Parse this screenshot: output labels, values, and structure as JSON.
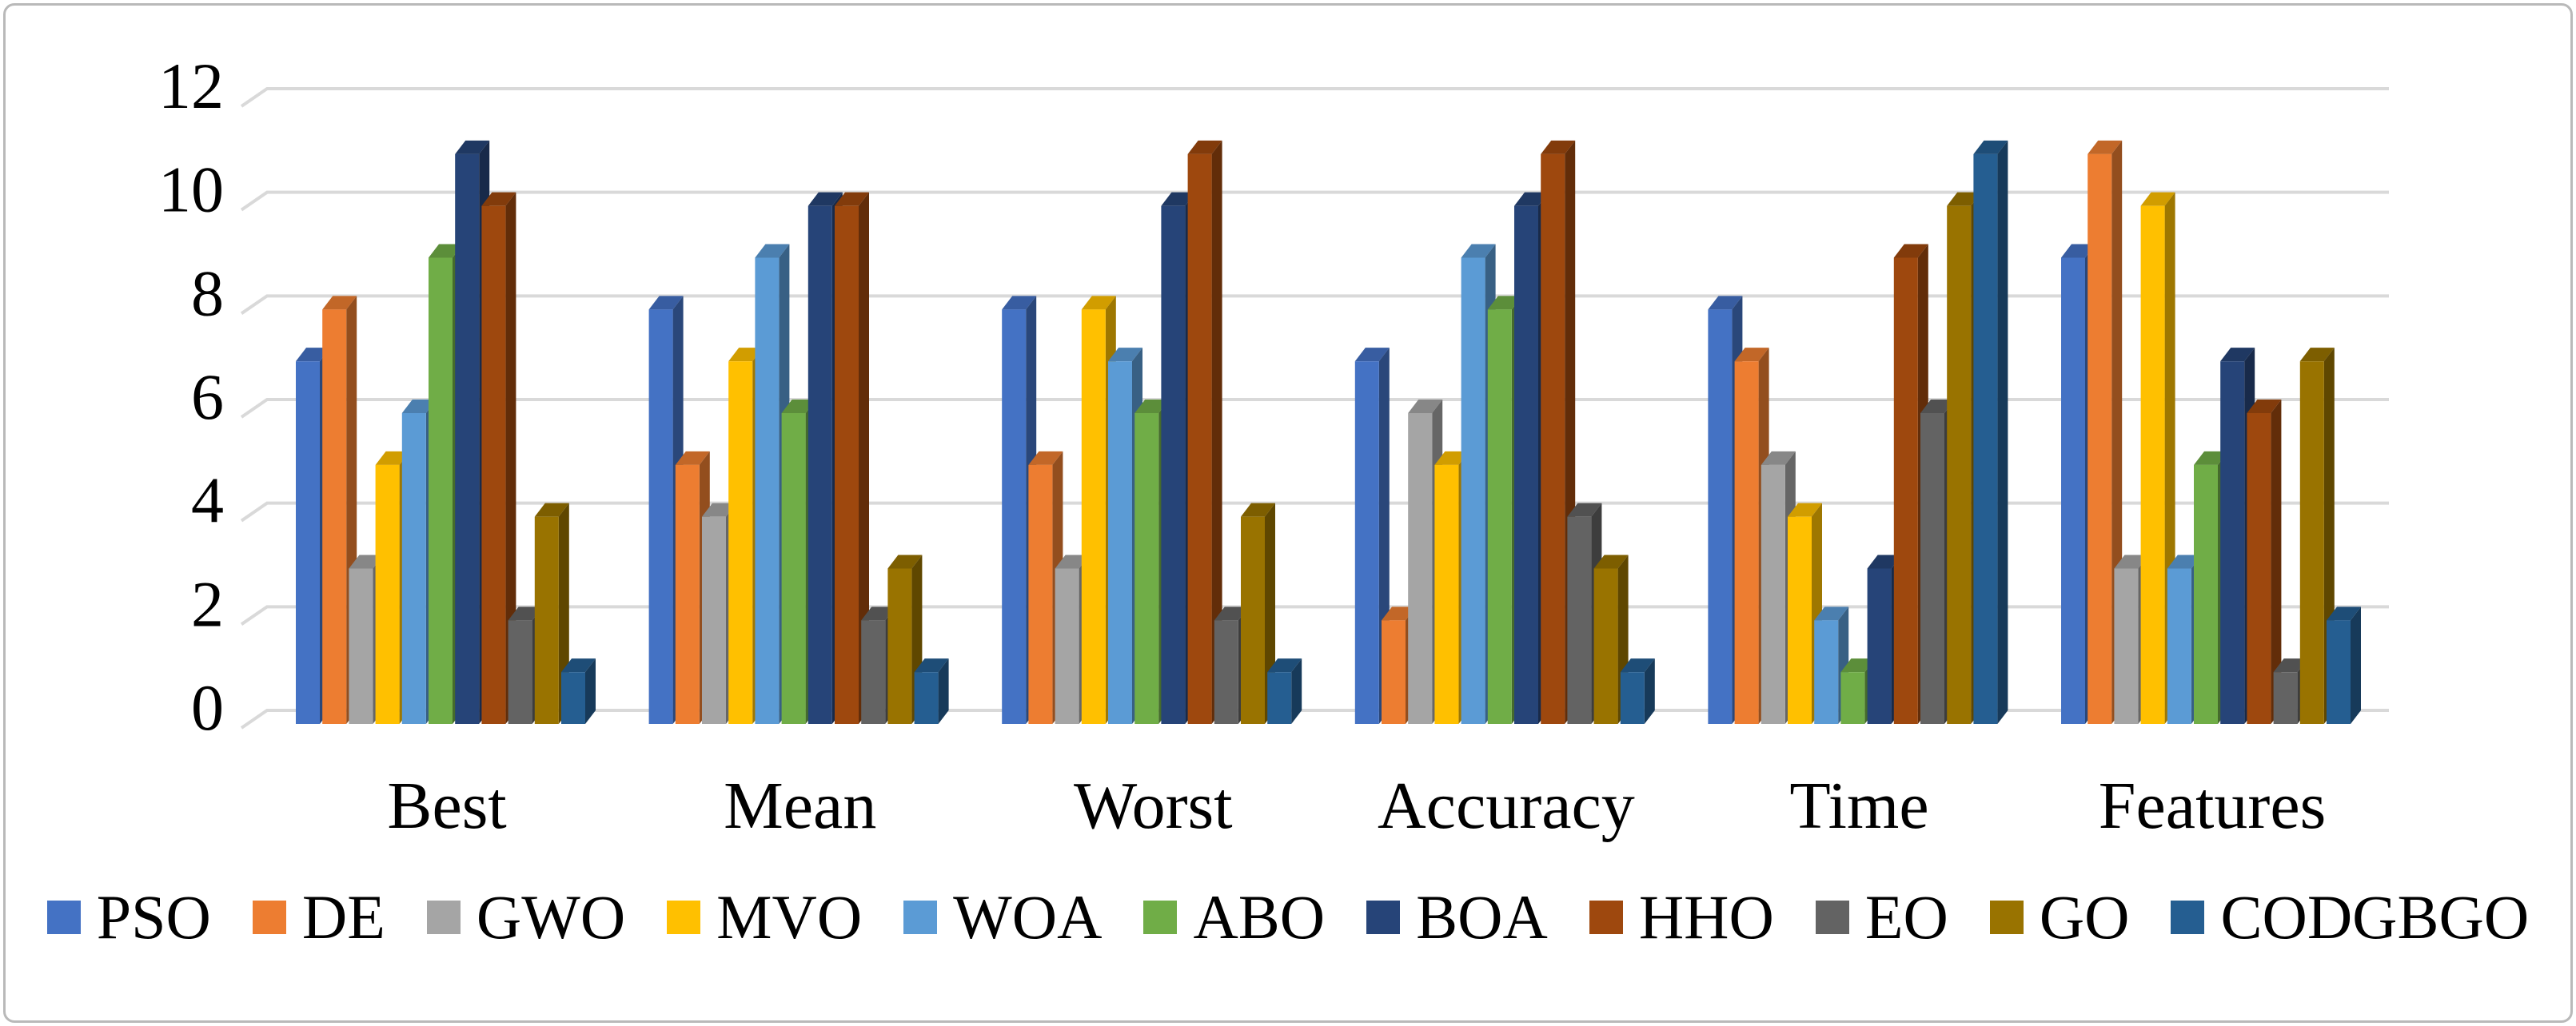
{
  "chart_data": {
    "type": "bar",
    "style": "3d-clustered-column",
    "title": "",
    "xlabel": "",
    "ylabel": "",
    "categories": [
      "Best",
      "Mean",
      "Worst",
      "Accuracy",
      "Time",
      "Features"
    ],
    "series": [
      {
        "name": "PSO",
        "color": "#4472C4",
        "values": [
          7,
          8,
          8,
          7,
          8,
          9
        ]
      },
      {
        "name": "DE",
        "color": "#ED7D31",
        "values": [
          8,
          5,
          5,
          2,
          7,
          11
        ]
      },
      {
        "name": "GWO",
        "color": "#A5A5A5",
        "values": [
          3,
          4,
          3,
          6,
          5,
          3
        ]
      },
      {
        "name": "MVO",
        "color": "#FFC000",
        "values": [
          5,
          7,
          8,
          5,
          4,
          10
        ]
      },
      {
        "name": "WOA",
        "color": "#5B9BD5",
        "values": [
          6,
          9,
          7,
          9,
          2,
          3
        ]
      },
      {
        "name": "ABO",
        "color": "#70AD47",
        "values": [
          9,
          6,
          6,
          8,
          1,
          5
        ]
      },
      {
        "name": "BOA",
        "color": "#264478",
        "values": [
          11,
          10,
          10,
          10,
          3,
          7
        ]
      },
      {
        "name": "HHO",
        "color": "#9E480E",
        "values": [
          10,
          10,
          11,
          11,
          9,
          6
        ]
      },
      {
        "name": "EO",
        "color": "#636363",
        "values": [
          2,
          2,
          2,
          4,
          6,
          1
        ]
      },
      {
        "name": "GO",
        "color": "#997300",
        "values": [
          4,
          3,
          4,
          3,
          10,
          7
        ]
      },
      {
        "name": "CODGBGO",
        "color": "#255E91",
        "values": [
          1,
          1,
          1,
          1,
          11,
          2
        ]
      }
    ],
    "ylim": [
      0,
      12
    ],
    "yticks": [
      0,
      2,
      4,
      6,
      8,
      10,
      12
    ],
    "grid": true,
    "gridline_color": "#d9d9d9",
    "legend_position": "bottom"
  }
}
